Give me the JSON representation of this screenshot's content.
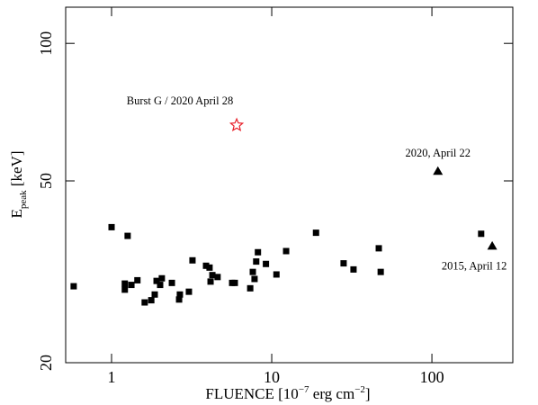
{
  "chart_data": {
    "type": "scatter",
    "x_label": {
      "text": "FLUENCE  [10",
      "exp1": "−7",
      "mid": " erg cm",
      "exp2": "−2",
      "end": "]"
    },
    "y_label": {
      "text": "E",
      "sub": "peak",
      "end": " [keV]"
    },
    "log_x": true,
    "log_y": true,
    "xlim": [
      0.517,
      320
    ],
    "ylim": [
      20,
      120
    ],
    "xticks": [
      1,
      10,
      100
    ],
    "yticks": [
      20,
      50,
      100
    ],
    "series": [
      {
        "marker": "square",
        "color": "#000000",
        "x": [
          0.58,
          1.0,
          1.26,
          1.21,
          1.21,
          1.33,
          1.45,
          1.61,
          1.77,
          1.86,
          1.91,
          2.01,
          2.06,
          2.38,
          2.64,
          2.67,
          3.04,
          3.2,
          3.89,
          4.09,
          4.15,
          4.26,
          4.59,
          5.66,
          5.88,
          7.34,
          7.62,
          7.81,
          8.0,
          8.2,
          9.2,
          10.7,
          12.3,
          18.9,
          28.1,
          32.4,
          46.6,
          47.9,
          203
        ],
        "values": [
          29.4,
          39.6,
          37.9,
          29.8,
          28.9,
          29.6,
          30.3,
          27.1,
          27.4,
          28.2,
          30.2,
          29.6,
          30.6,
          29.9,
          27.5,
          28.2,
          28.6,
          33.5,
          32.6,
          32.3,
          30.1,
          31.1,
          30.8,
          29.9,
          29.9,
          29.1,
          31.6,
          30.5,
          33.3,
          34.9,
          32.9,
          31.2,
          35.1,
          38.5,
          33.0,
          32.0,
          35.6,
          31.6,
          38.3
        ]
      },
      {
        "marker": "triangle",
        "color": "#000000",
        "x": [
          109,
          238
        ],
        "values": [
          52.5,
          36.0
        ]
      },
      {
        "marker": "star",
        "color": "#e8202a",
        "x": [
          6.04
        ],
        "values": [
          66.2
        ]
      }
    ],
    "annotations": [
      "Burst G / 2020 April 28",
      "2020, April 22",
      "2015, April 12"
    ]
  }
}
